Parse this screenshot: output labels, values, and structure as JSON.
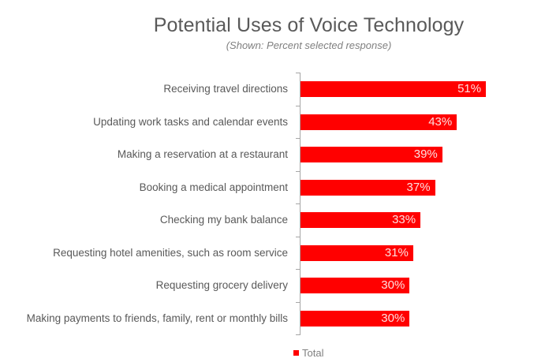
{
  "chart_data": {
    "type": "bar",
    "orientation": "horizontal",
    "title": "Potential Uses of Voice Technology",
    "subtitle": "(Shown: Percent selected response)",
    "xlabel": "",
    "ylabel": "",
    "categories": [
      "Receiving travel directions",
      "Updating work tasks and calendar events",
      "Making a reservation at a restaurant",
      "Booking a medical appointment",
      "Checking my bank balance",
      "Requesting hotel amenities, such as room service",
      "Requesting grocery delivery",
      "Making payments to friends, family, rent or monthly bills"
    ],
    "series": [
      {
        "name": "Total",
        "color": "#ff0000",
        "values": [
          51,
          43,
          39,
          37,
          33,
          31,
          30,
          30
        ]
      }
    ],
    "value_labels": [
      "51%",
      "43%",
      "39%",
      "37%",
      "33%",
      "31%",
      "30%",
      "30%"
    ],
    "legend": {
      "position": "bottom",
      "entries": [
        "Total"
      ]
    },
    "grid": false,
    "xlim": [
      0,
      55
    ]
  },
  "header": {
    "title": "Potential Uses of Voice Technology",
    "subtitle": "(Shown: Percent selected response)"
  },
  "legend": {
    "label": "Total",
    "color": "#ff0000"
  }
}
